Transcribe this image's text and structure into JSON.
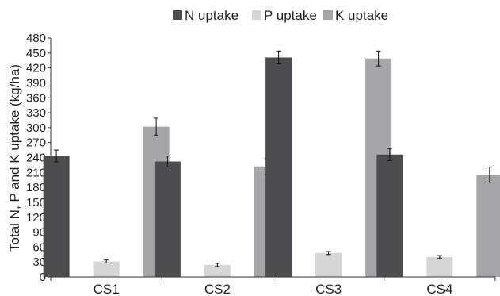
{
  "chart_data": {
    "type": "bar",
    "title": "",
    "xlabel": "",
    "ylabel": "Total N, P and K uptake (kg/ha)",
    "categories": [
      "CS1",
      "CS2",
      "CS3",
      "CS4"
    ],
    "series": [
      {
        "name": "N uptake",
        "color": "#4d4d4f",
        "values": [
          243,
          232,
          441,
          246
        ],
        "errors": [
          12,
          11,
          13,
          12
        ]
      },
      {
        "name": "P uptake",
        "color": "#d6d6d6",
        "values": [
          31,
          24,
          48,
          40
        ],
        "errors": [
          3,
          3,
          3,
          3
        ]
      },
      {
        "name": "K uptake",
        "color": "#a6a6a8",
        "values": [
          302,
          222,
          439,
          205
        ],
        "errors": [
          17,
          16,
          15,
          16
        ]
      }
    ],
    "ylim": [
      0,
      480
    ],
    "yticks": [
      0,
      30,
      60,
      90,
      120,
      150,
      180,
      210,
      240,
      270,
      300,
      330,
      360,
      390,
      420,
      450,
      480
    ],
    "grid": false,
    "legend_position": "top"
  }
}
